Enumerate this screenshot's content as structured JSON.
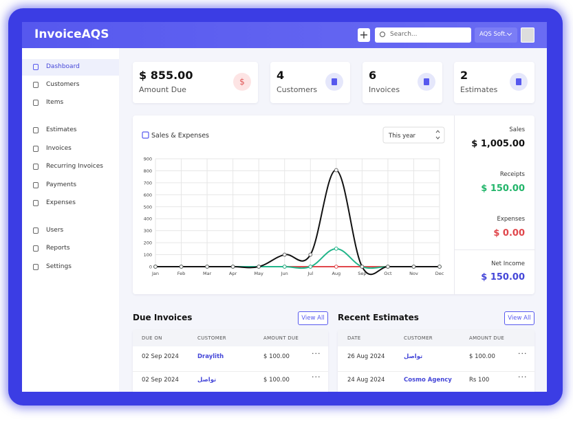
{
  "header": {
    "brand": "InvoiceAQS",
    "search_placeholder": "Search...",
    "company": "AQS Soft."
  },
  "sidebar": {
    "groups": [
      [
        "Dashboard",
        "Customers",
        "Items"
      ],
      [
        "Estimates",
        "Invoices",
        "Recurring Invoices",
        "Payments",
        "Expenses"
      ],
      [
        "Users",
        "Reports",
        "Settings"
      ]
    ]
  },
  "stats": [
    {
      "value": "$ 855.00",
      "label": "Amount Due",
      "icon": "$"
    },
    {
      "value": 4,
      "label": "Customers"
    },
    {
      "value": 6,
      "label": "Invoices"
    },
    {
      "value": 2,
      "label": "Estimates"
    }
  ],
  "chart_data": {
    "type": "line",
    "title": "Sales & Expenses",
    "period": "This year",
    "categories": [
      "Jan",
      "Feb",
      "Mar",
      "Apr",
      "May",
      "Jun",
      "Jul",
      "Aug",
      "Sep",
      "Oct",
      "Nov",
      "Dec"
    ],
    "ylim": [
      0,
      900
    ],
    "yticks": [
      0,
      100,
      200,
      300,
      400,
      500,
      600,
      700,
      800,
      900
    ],
    "grid": true,
    "series": [
      {
        "name": "Sales",
        "total": "$ 1,005.00",
        "color": "#111111",
        "values": [
          0,
          0,
          0,
          0,
          0,
          100,
          100,
          805,
          0,
          0,
          0,
          0
        ]
      },
      {
        "name": "Receipts",
        "total": "$ 150.00",
        "color": "#22b58a",
        "values": [
          0,
          0,
          0,
          0,
          0,
          0,
          0,
          150,
          0,
          0,
          0,
          0
        ]
      },
      {
        "name": "Expenses",
        "total": "$ 0.00",
        "color": "#e0474c",
        "values": [
          0,
          0,
          0,
          0,
          0,
          0,
          0,
          0,
          0,
          0,
          0,
          0
        ]
      }
    ]
  },
  "net_income": {
    "label": "Net Income",
    "amount": "$ 150.00"
  },
  "due_invoices": {
    "title": "Due Invoices",
    "view_all": "View All",
    "columns": [
      "DUE ON",
      "CUSTOMER",
      "AMOUNT DUE"
    ],
    "rows": [
      [
        "02 Sep 2024",
        "Draylith",
        "$ 100.00"
      ],
      [
        "02 Sep 2024",
        "تواصل",
        "$ 100.00"
      ]
    ]
  },
  "recent_estimates": {
    "title": "Recent Estimates",
    "view_all": "View All",
    "columns": [
      "DATE",
      "CUSTOMER",
      "AMOUNT DUE"
    ],
    "rows": [
      [
        "26 Aug 2024",
        "تواصل",
        "$ 100.00"
      ],
      [
        "24 Aug 2024",
        "Cosmo Agency",
        "Rs 100"
      ]
    ]
  }
}
